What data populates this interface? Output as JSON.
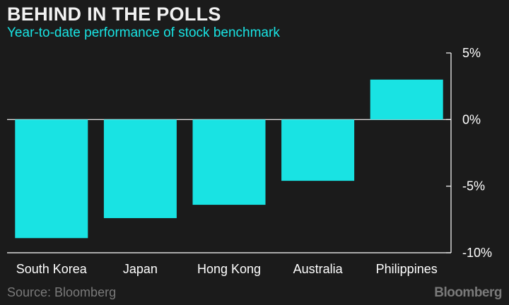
{
  "header": {
    "title": "BEHIND IN THE POLLS",
    "subtitle": "Year-to-date performance of stock benchmark"
  },
  "footer": {
    "source": "Source: Bloomberg",
    "brand": "Bloomberg"
  },
  "colors": {
    "background": "#1b1b1b",
    "bar": "#19e3e3",
    "text": "#ffffff",
    "muted": "#7a7a7a"
  },
  "chart_data": {
    "type": "bar",
    "title": "BEHIND IN THE POLLS",
    "subtitle": "Year-to-date performance of stock benchmark",
    "categories": [
      "South Korea",
      "Japan",
      "Hong Kong",
      "Australia",
      "Philippines"
    ],
    "values": [
      -8.9,
      -7.4,
      -6.4,
      -4.6,
      3.0
    ],
    "ylim": [
      -10,
      5
    ],
    "yticks": [
      5,
      0,
      -5,
      -10
    ],
    "ytick_labels": [
      "5%",
      "0%",
      "-5%",
      "-10%"
    ],
    "y_axis_position": "right",
    "grid": false,
    "zero_line": true
  }
}
